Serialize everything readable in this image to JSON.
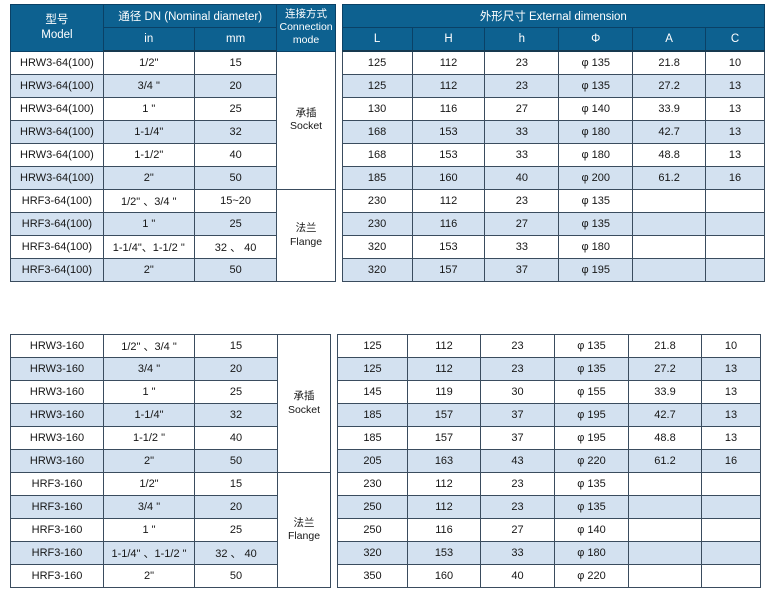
{
  "header": {
    "model": "型号\nModel",
    "dn": "通径 DN  (Nominal diameter)",
    "in_label": "in",
    "mm_label": "mm",
    "connection": "连接方式\nConnection\nmode",
    "external": "外形尺寸  External dimension",
    "cols": [
      "L",
      "H",
      "h",
      "Φ",
      "A",
      "C"
    ]
  },
  "colors": {
    "header_bg": "#0d6190",
    "row_alt": "#d3e1f0",
    "border": "#3a4c5e"
  },
  "tables": {
    "t1l": [
      [
        "HRW3-64(100)",
        "1/2\"",
        "15",
        {
          "t": "承插\nSocket",
          "rs": 6,
          "cls": "conn",
          "n": "connection-mode-cell"
        }
      ],
      [
        "HRW3-64(100)",
        "3/4 \"",
        "20"
      ],
      [
        "HRW3-64(100)",
        "1 \"",
        "25"
      ],
      [
        "HRW3-64(100)",
        "1-1/4\"",
        "32"
      ],
      [
        "HRW3-64(100)",
        "1-1/2\"",
        "40"
      ],
      [
        "HRW3-64(100)",
        "2\"",
        "50"
      ],
      [
        "HRF3-64(100)",
        "1/2\" 、3/4 \"",
        "15~20",
        {
          "t": "法兰\nFlange",
          "rs": 4,
          "cls": "conn",
          "n": "connection-mode-cell"
        }
      ],
      [
        "HRF3-64(100)",
        "1 \"",
        "25"
      ],
      [
        "HRF3-64(100)",
        "1-1/4\"、1-1/2 \"",
        "32 、 40"
      ],
      [
        "HRF3-64(100)",
        "2\"",
        "50"
      ]
    ],
    "t1r": [
      [
        "125",
        "112",
        "23",
        "φ 135",
        "21.8",
        "10"
      ],
      [
        "125",
        "112",
        "23",
        "φ 135",
        "27.2",
        "13"
      ],
      [
        "130",
        "116",
        "27",
        "φ 140",
        "33.9",
        "13"
      ],
      [
        "168",
        "153",
        "33",
        "φ 180",
        "42.7",
        "13"
      ],
      [
        "168",
        "153",
        "33",
        "φ 180",
        "48.8",
        "13"
      ],
      [
        "185",
        "160",
        "40",
        "φ 200",
        "61.2",
        "16"
      ],
      [
        "230",
        "112",
        "23",
        "φ 135",
        "",
        ""
      ],
      [
        "230",
        "116",
        "27",
        "φ 135",
        "",
        ""
      ],
      [
        "320",
        "153",
        "33",
        "φ 180",
        "",
        ""
      ],
      [
        "320",
        "157",
        "37",
        "φ 195",
        "",
        ""
      ]
    ],
    "t2l": [
      [
        "HRW3-160",
        "1/2\" 、3/4 \"",
        "15",
        {
          "t": "承插\nSocket",
          "rs": 6,
          "cls": "conn",
          "n": "connection-mode-cell"
        }
      ],
      [
        "HRW3-160",
        "3/4 \"",
        "20"
      ],
      [
        "HRW3-160",
        "1 \"",
        "25"
      ],
      [
        "HRW3-160",
        "1-1/4\"",
        "32"
      ],
      [
        "HRW3-160",
        "1-1/2 \"",
        "40"
      ],
      [
        "HRW3-160",
        "2\"",
        "50"
      ],
      [
        "HRF3-160",
        "1/2\"",
        "15",
        {
          "t": "法兰\nFlange",
          "rs": 5,
          "cls": "conn",
          "n": "connection-mode-cell"
        }
      ],
      [
        "HRF3-160",
        "3/4 \"",
        "20"
      ],
      [
        "HRF3-160",
        "1 \"",
        "25"
      ],
      [
        "HRF3-160",
        "1-1/4\" 、1-1/2 \"",
        "32 、 40"
      ],
      [
        "HRF3-160",
        "2\"",
        "50"
      ]
    ],
    "t2r": [
      [
        "125",
        "112",
        "23",
        "φ 135",
        "21.8",
        "10"
      ],
      [
        "125",
        "112",
        "23",
        "φ 135",
        "27.2",
        "13"
      ],
      [
        "145",
        "119",
        "30",
        "φ 155",
        "33.9",
        "13"
      ],
      [
        "185",
        "157",
        "37",
        "φ 195",
        "42.7",
        "13"
      ],
      [
        "185",
        "157",
        "37",
        "φ 195",
        "48.8",
        "13"
      ],
      [
        "205",
        "163",
        "43",
        "φ 220",
        "61.2",
        "16"
      ],
      [
        "230",
        "112",
        "23",
        "φ 135",
        "",
        ""
      ],
      [
        "250",
        "112",
        "23",
        "φ 135",
        "",
        ""
      ],
      [
        "250",
        "116",
        "27",
        "φ 140",
        "",
        ""
      ],
      [
        "320",
        "153",
        "33",
        "φ 180",
        "",
        ""
      ],
      [
        "350",
        "160",
        "40",
        "φ 220",
        "",
        ""
      ]
    ]
  }
}
